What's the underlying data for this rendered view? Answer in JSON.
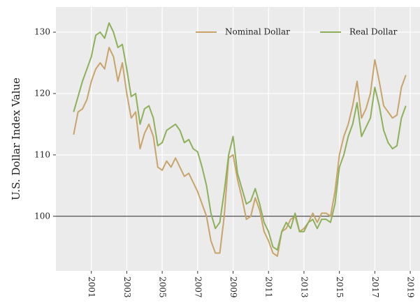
{
  "chart_data": {
    "type": "line",
    "y_label": "U.S. Dollar Index Value",
    "x": [
      2000,
      2000.25,
      2000.5,
      2000.75,
      2001,
      2001.25,
      2001.5,
      2001.75,
      2002,
      2002.25,
      2002.5,
      2002.75,
      2003,
      2003.25,
      2003.5,
      2003.75,
      2004,
      2004.25,
      2004.5,
      2004.75,
      2005,
      2005.25,
      2005.5,
      2005.75,
      2006,
      2006.25,
      2006.5,
      2006.75,
      2007,
      2007.25,
      2007.5,
      2007.75,
      2008,
      2008.25,
      2008.5,
      2008.75,
      2009,
      2009.25,
      2009.5,
      2009.75,
      2010,
      2010.25,
      2010.5,
      2010.75,
      2011,
      2011.25,
      2011.5,
      2011.75,
      2012,
      2012.25,
      2012.5,
      2012.75,
      2013,
      2013.25,
      2013.5,
      2013.75,
      2014,
      2014.25,
      2014.5,
      2014.75,
      2015,
      2015.25,
      2015.5,
      2015.75,
      2016,
      2016.25,
      2016.5,
      2016.75,
      2017,
      2017.25,
      2017.5,
      2017.75,
      2018,
      2018.25,
      2018.5,
      2018.75
    ],
    "series": [
      {
        "name": "Nominal Dollar",
        "color": "#c9a46a",
        "values": [
          113.3,
          117,
          117.5,
          119,
          122,
          124,
          125,
          124,
          127.5,
          126,
          122,
          125,
          120,
          116,
          117,
          111,
          113.5,
          115,
          113,
          108,
          107.5,
          109,
          108,
          109.5,
          108,
          106.5,
          107,
          105.5,
          104,
          102,
          100,
          96,
          94,
          94,
          100,
          109.5,
          110,
          106,
          103,
          99.5,
          100,
          103,
          101,
          97.5,
          96,
          94,
          93.5,
          97.5,
          98,
          99.5,
          100,
          97.5,
          98,
          99,
          100.5,
          99,
          100.5,
          100.5,
          100,
          104,
          110,
          113,
          115,
          118,
          122,
          116,
          117.5,
          120,
          125.5,
          122,
          118,
          117,
          116,
          116.5,
          121,
          123
        ]
      },
      {
        "name": "Real Dollar",
        "color": "#8db05a",
        "values": [
          117,
          119.5,
          122,
          124,
          126,
          129.5,
          130,
          129,
          131.5,
          130,
          127.5,
          128,
          124,
          119.5,
          120,
          115,
          117.5,
          118,
          116,
          111.5,
          112,
          114,
          114.5,
          115,
          114,
          112,
          112.5,
          111,
          110.5,
          108,
          105,
          100.5,
          98,
          99,
          104,
          110,
          113,
          107,
          104.5,
          102,
          102.5,
          104.5,
          102,
          99,
          97.5,
          95,
          94.5,
          97.5,
          99,
          98,
          100.5,
          97.5,
          97.5,
          99,
          99.5,
          98,
          99.5,
          99.5,
          99,
          102,
          108,
          110,
          113,
          115,
          118.5,
          113,
          114.5,
          116,
          121,
          118,
          114,
          112,
          111,
          111.5,
          116,
          118
        ]
      }
    ],
    "xlim": [
      1999,
      2019.55
    ],
    "xticks": [
      2001,
      2003,
      2005,
      2007,
      2009,
      2011,
      2013,
      2015,
      2017,
      2019
    ],
    "ylim": [
      91.1,
      134.1
    ],
    "yticks": [
      100,
      110,
      120,
      130
    ],
    "hline": 100,
    "grid": true,
    "legend": "top-right"
  }
}
